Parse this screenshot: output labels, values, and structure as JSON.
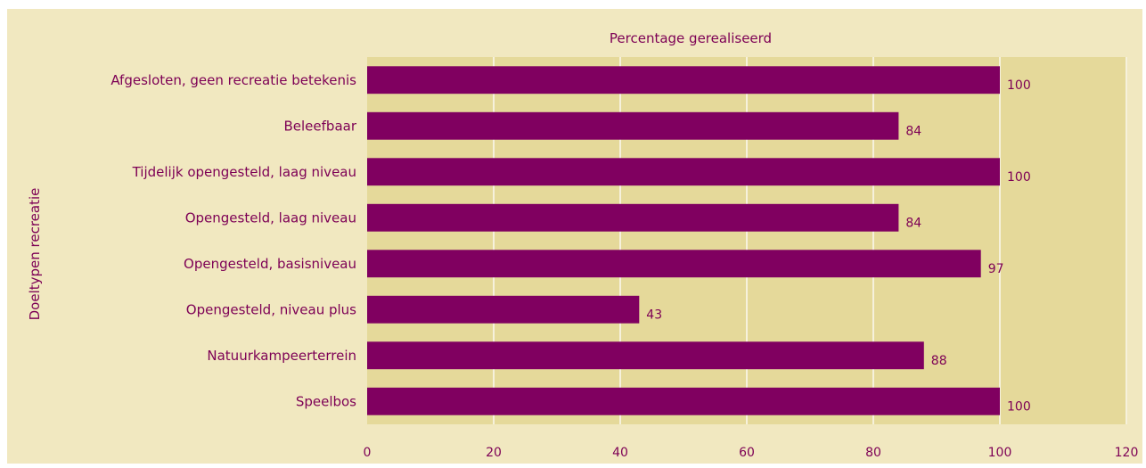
{
  "colors": {
    "panel_bg": "#f1e8c0",
    "plot_bg": "#e5d99a",
    "plot_bg_beyond": "#e5d99a",
    "bar": "#800060",
    "text": "#7d0055",
    "grid": "#f6f1dc"
  },
  "chart_data": {
    "type": "bar",
    "orientation": "horizontal",
    "title": "Percentage gerealiseerd",
    "xlabel": "",
    "ylabel": "Doeltypen recreatie",
    "categories": [
      "Afgesloten, geen recreatie betekenis",
      "Beleefbaar",
      "Tijdelijk opengesteld, laag niveau",
      "Opengesteld, laag niveau",
      "Opengesteld, basisniveau",
      "Opengesteld, niveau plus",
      "Natuurkampeerterrein",
      "Speelbos"
    ],
    "values": [
      100,
      84,
      100,
      84,
      97,
      43,
      88,
      100
    ],
    "data_labels": [
      "100",
      "84",
      "100",
      "84",
      "97",
      "43",
      "88",
      "100"
    ],
    "xlim": [
      0,
      120
    ],
    "xticks": [
      0,
      20,
      40,
      60,
      80,
      100,
      120
    ],
    "xtick_labels": [
      "0",
      "20",
      "40",
      "60",
      "80",
      "100",
      "120"
    ],
    "grid": true,
    "legend": "none"
  }
}
